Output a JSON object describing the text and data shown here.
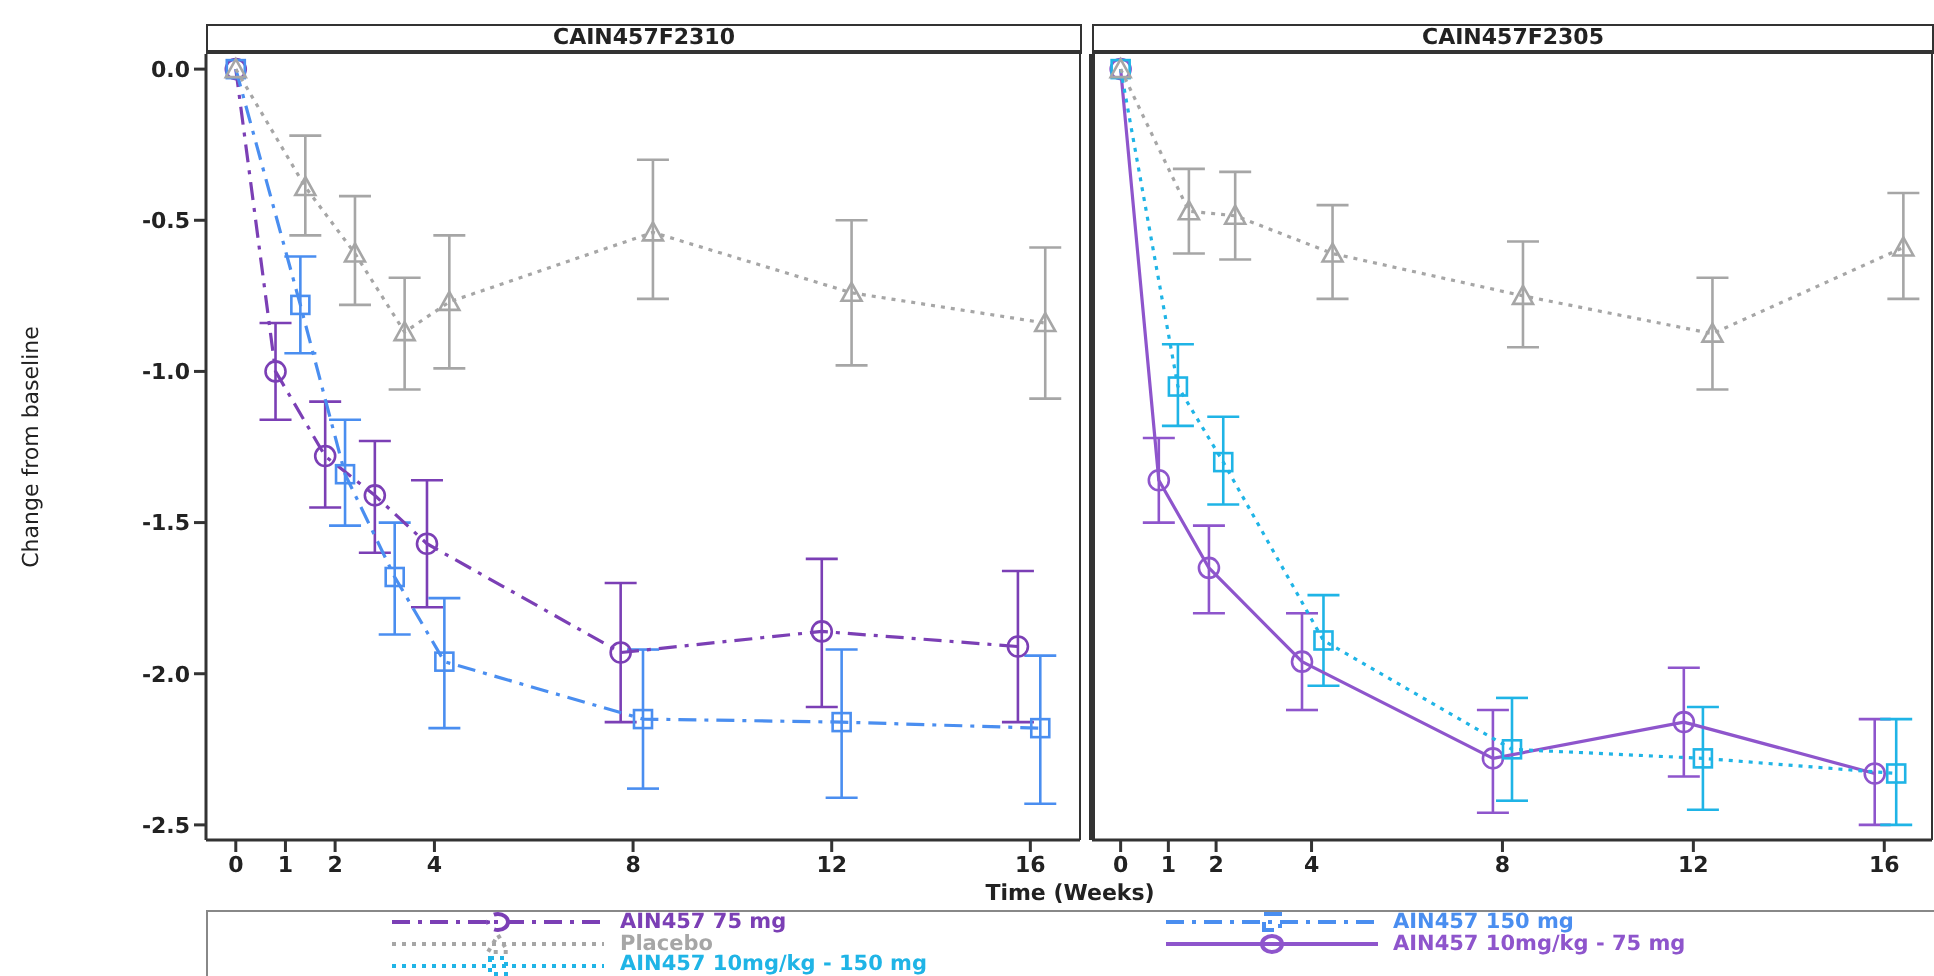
{
  "chart_data": [
    {
      "type": "line",
      "title": "CAIN457F2310",
      "xlabel": "Time (Weeks)",
      "ylabel": "Change from baseline",
      "xlim": [
        -0.6,
        17
      ],
      "xticks": [
        0,
        1,
        2,
        4,
        8,
        12,
        16
      ],
      "ylim": [
        -2.55,
        0.05
      ],
      "yticks": [
        {
          "value": 0,
          "label": "0.0"
        },
        {
          "value": -0.5,
          "label": "-0.5"
        },
        {
          "value": -1,
          "label": "-1.0"
        },
        {
          "value": -1.5,
          "label": "-1.5"
        },
        {
          "value": -2,
          "label": "-2.0"
        },
        {
          "value": -2.5,
          "label": "-2.5"
        }
      ],
      "legend": "bottom",
      "series": [
        {
          "name": "AIN457 75 mg",
          "color": "#7b3fb5",
          "marker": "circle",
          "line_style": "dashed",
          "x": [
            0,
            0.8,
            1.8,
            2.8,
            3.85,
            7.75,
            11.8,
            15.75
          ],
          "values": [
            0,
            -1.0,
            -1.28,
            -1.41,
            -1.57,
            -1.93,
            -1.86,
            -1.91
          ],
          "errors": [
            null,
            [
              -1.16,
              -0.84
            ],
            [
              -1.45,
              -1.1
            ],
            [
              -1.6,
              -1.23
            ],
            [
              -1.78,
              -1.36
            ],
            [
              -2.16,
              -1.7
            ],
            [
              -2.11,
              -1.62
            ],
            [
              -2.16,
              -1.66
            ]
          ]
        },
        {
          "name": "AIN457 150 mg",
          "color": "#4a8ef0",
          "marker": "square",
          "line_style": "dashed",
          "x": [
            0,
            1.3,
            2.2,
            3.2,
            4.2,
            8.2,
            12.2,
            16.2
          ],
          "values": [
            0,
            -0.78,
            -1.34,
            -1.68,
            -1.96,
            -2.15,
            -2.16,
            -2.18
          ],
          "errors": [
            null,
            [
              -0.94,
              -0.62
            ],
            [
              -1.51,
              -1.16
            ],
            [
              -1.87,
              -1.5
            ],
            [
              -2.18,
              -1.75
            ],
            [
              -2.38,
              -1.92
            ],
            [
              -2.41,
              -1.92
            ],
            [
              -2.43,
              -1.94
            ]
          ]
        },
        {
          "name": "Placebo",
          "color": "#a6a6a6",
          "marker": "triangle",
          "line_style": "dotted",
          "x": [
            0,
            1.4,
            2.4,
            3.4,
            4.3,
            8.4,
            12.4,
            16.3
          ],
          "values": [
            0,
            -0.39,
            -0.61,
            -0.87,
            -0.77,
            -0.54,
            -0.74,
            -0.84
          ],
          "errors": [
            null,
            [
              -0.55,
              -0.22
            ],
            [
              -0.78,
              -0.42
            ],
            [
              -1.06,
              -0.69
            ],
            [
              -0.99,
              -0.55
            ],
            [
              -0.76,
              -0.3
            ],
            [
              -0.98,
              -0.5
            ],
            [
              -1.09,
              -0.59
            ]
          ]
        }
      ]
    },
    {
      "type": "line",
      "title": "CAIN457F2305",
      "xlim": [
        -0.6,
        17
      ],
      "xticks": [
        0,
        1,
        2,
        4,
        8,
        12,
        16
      ],
      "ylim": [
        -2.55,
        0.05
      ],
      "tick_labels": "x",
      "legend": "bottom",
      "series": [
        {
          "name": "AIN457 10mg/kg - 75 mg",
          "color": "#8e55cc",
          "marker": "circle",
          "line_style": "solid",
          "x": [
            0,
            0.8,
            1.85,
            3.8,
            7.8,
            11.8,
            15.8
          ],
          "values": [
            0,
            -1.36,
            -1.65,
            -1.96,
            -2.28,
            -2.16,
            -2.33
          ],
          "errors": [
            null,
            [
              -1.5,
              -1.22
            ],
            [
              -1.8,
              -1.51
            ],
            [
              -2.12,
              -1.8
            ],
            [
              -2.46,
              -2.12
            ],
            [
              -2.34,
              -1.98
            ],
            [
              -2.5,
              -2.15
            ]
          ]
        },
        {
          "name": "AIN457 10mg/kg - 150 mg",
          "color": "#1fb4e6",
          "marker": "square",
          "line_style": "dotted",
          "x": [
            0,
            1.2,
            2.15,
            4.25,
            8.2,
            12.2,
            16.25
          ],
          "values": [
            0,
            -1.05,
            -1.3,
            -1.89,
            -2.25,
            -2.28,
            -2.33
          ],
          "errors": [
            null,
            [
              -1.18,
              -0.91
            ],
            [
              -1.44,
              -1.15
            ],
            [
              -2.04,
              -1.74
            ],
            [
              -2.42,
              -2.08
            ],
            [
              -2.45,
              -2.11
            ],
            [
              -2.5,
              -2.15
            ]
          ]
        },
        {
          "color": "#a6a6a6",
          "marker": "triangle",
          "line_style": "dotted",
          "x": [
            0,
            1.43,
            2.4,
            4.44,
            8.43,
            12.4,
            16.4
          ],
          "values": [
            0,
            -0.47,
            -0.485,
            -0.61,
            -0.75,
            -0.875,
            -0.59
          ],
          "errors": [
            null,
            [
              -0.61,
              -0.33
            ],
            [
              -0.63,
              -0.34
            ],
            [
              -0.76,
              -0.45
            ],
            [
              -0.92,
              -0.57
            ],
            [
              -1.06,
              -0.69
            ],
            [
              -0.76,
              -0.41
            ]
          ]
        }
      ]
    }
  ]
}
